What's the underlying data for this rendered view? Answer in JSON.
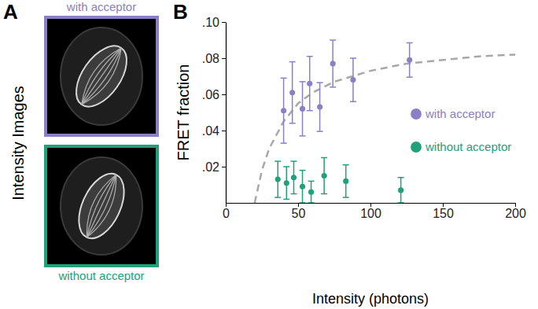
{
  "panel_labels": [
    "A",
    "B"
  ],
  "panel_a": {
    "side_label": "Intensity Images",
    "images": [
      {
        "caption": "with acceptor",
        "color": "#8b80c3"
      },
      {
        "caption": "without acceptor",
        "color": "#21a07a"
      }
    ]
  },
  "chart_data": {
    "type": "scatter",
    "x_label": "Intensity (photons)",
    "y_label": "FRET fraction",
    "xlim": [
      0,
      200
    ],
    "xticks": [
      0,
      50,
      100,
      150,
      200
    ],
    "ylim": [
      0,
      0.1
    ],
    "yticks": [
      {
        "value": 0.02,
        "label": ".02"
      },
      {
        "value": 0.04,
        "label": ".04"
      },
      {
        "value": 0.06,
        "label": ".06"
      },
      {
        "value": 0.08,
        "label": ".08"
      },
      {
        "value": 0.1,
        "label": ".10"
      }
    ],
    "grid": false,
    "legend": "right",
    "series": [
      {
        "name": "with acceptor",
        "color": "#8b80c3",
        "type": "scatter",
        "marker": "circle",
        "x": [
          40,
          46,
          53,
          58,
          65,
          74,
          88,
          127
        ],
        "values": [
          0.051,
          0.061,
          0.052,
          0.066,
          0.053,
          0.077,
          0.068,
          0.079
        ],
        "errors": [
          0.018,
          0.017,
          0.015,
          0.015,
          0.0135,
          0.013,
          0.012,
          0.0095
        ]
      },
      {
        "name": "without acceptor",
        "color": "#21a07a",
        "type": "scatter",
        "marker": "circle",
        "x": [
          36,
          42,
          47,
          53,
          59,
          68,
          83,
          121
        ],
        "values": [
          0.013,
          0.011,
          0.014,
          0.009,
          0.006,
          0.015,
          0.012,
          0.007
        ],
        "errors": [
          0.01,
          0.009,
          0.009,
          0.009,
          0.006,
          0.01,
          0.009,
          0.007
        ]
      },
      {
        "color": "#a8a8a8",
        "type": "line",
        "line_style": "dashed",
        "x": [
          20,
          25,
          30,
          40,
          50,
          60,
          75,
          100,
          125,
          150,
          175,
          200
        ],
        "values": [
          0,
          0.018,
          0.03,
          0.045,
          0.055,
          0.061,
          0.067,
          0.073,
          0.077,
          0.079,
          0.081,
          0.082
        ]
      }
    ]
  }
}
